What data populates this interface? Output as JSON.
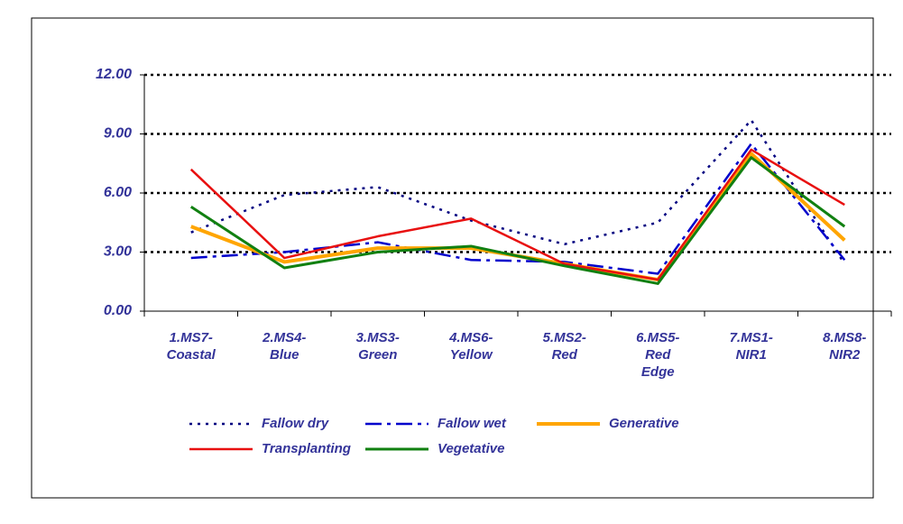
{
  "chart_data": {
    "type": "line",
    "categories": [
      "1.MS7-\nCoastal",
      "2.MS4-\nBlue",
      "3.MS3-\nGreen",
      "4.MS6-\nYellow",
      "5.MS2-\nRed",
      "6.MS5-\nRed\nEdge",
      "7.MS1-\nNIR1",
      "8.MS8-\nNIR2"
    ],
    "series": [
      {
        "name": "Fallow dry",
        "color": "#000080",
        "dash": "3 6",
        "width": 2.5,
        "values": [
          4.0,
          5.9,
          6.3,
          4.6,
          3.4,
          4.5,
          9.7,
          2.4
        ]
      },
      {
        "name": "Fallow wet",
        "color": "#0000cc",
        "dash": "18 6 4 6",
        "width": 2.5,
        "values": [
          2.7,
          3.0,
          3.5,
          2.6,
          2.5,
          1.9,
          8.5,
          2.6
        ]
      },
      {
        "name": "Generative",
        "color": "#ffa500",
        "dash": "none",
        "width": 4,
        "values": [
          4.3,
          2.5,
          3.2,
          3.2,
          2.4,
          1.6,
          8.0,
          3.6
        ]
      },
      {
        "name": "Transplanting",
        "color": "#e81010",
        "dash": "none",
        "width": 2.5,
        "values": [
          7.2,
          2.7,
          3.8,
          4.7,
          2.4,
          1.6,
          8.2,
          5.4
        ]
      },
      {
        "name": "Vegetative",
        "color": "#118011",
        "dash": "none",
        "width": 3,
        "values": [
          5.3,
          2.2,
          3.0,
          3.3,
          2.3,
          1.4,
          7.8,
          4.3
        ]
      }
    ],
    "ylim": [
      0,
      12
    ],
    "yticks": [
      {
        "value": 0,
        "label": "0.00"
      },
      {
        "value": 3,
        "label": "3.00"
      },
      {
        "value": 6,
        "label": "6.00"
      },
      {
        "value": 9,
        "label": "9.00"
      },
      {
        "value": 12,
        "label": "12.00"
      }
    ],
    "grid": true,
    "legend": "bottom"
  }
}
